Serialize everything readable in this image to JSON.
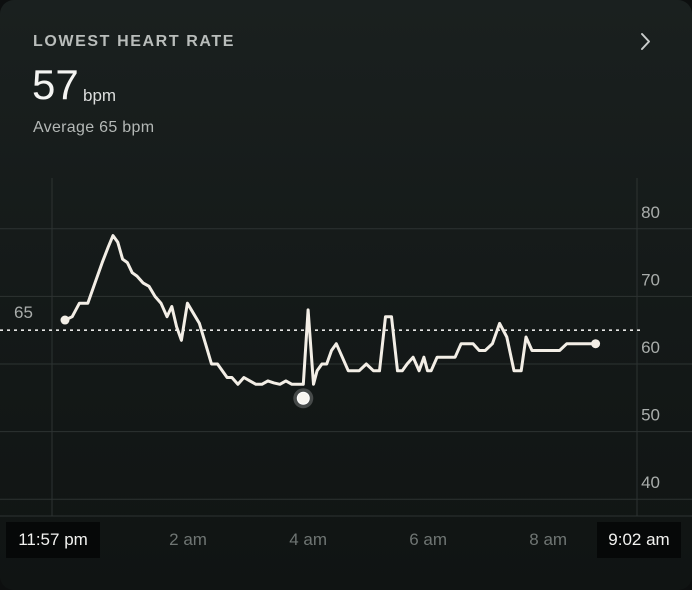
{
  "card": {
    "title": "LOWEST HEART RATE",
    "value": "57",
    "unit": "bpm",
    "average_text": "Average 65 bpm",
    "chevron_icon": "chevron-right-icon"
  },
  "chart_data": {
    "type": "line",
    "title": "",
    "xlabel": "",
    "ylabel": "",
    "y_ticks": [
      "80",
      "70",
      "60",
      "50",
      "40"
    ],
    "ylim": [
      35,
      85
    ],
    "x_start_label": "11:57 pm",
    "x_end_label": "9:02 am",
    "x_tick_labels": [
      "2 am",
      "4 am",
      "6 am",
      "8 am"
    ],
    "x_ticks_hours": [
      2.05,
      4.05,
      6.05,
      8.05
    ],
    "x_range_hours": [
      0,
      9.08
    ],
    "average": {
      "value": 65,
      "label": "65"
    },
    "lowest_point": {
      "x_hours": 3.97,
      "y": 57
    },
    "grid": true,
    "line_color": "#f3eee6",
    "series": [
      {
        "x": [
          0,
          0.12,
          0.24,
          0.38,
          0.5,
          0.62,
          0.72,
          0.8,
          0.88,
          0.96,
          1.04,
          1.12,
          1.2,
          1.3,
          1.4,
          1.5,
          1.6,
          1.7,
          1.78,
          1.86,
          1.94,
          2.04,
          2.14,
          2.24,
          2.34,
          2.44,
          2.54,
          2.62,
          2.7,
          2.78,
          2.88,
          2.98,
          3.08,
          3.18,
          3.28,
          3.38,
          3.48,
          3.58,
          3.68,
          3.78,
          3.88,
          3.97,
          4.05,
          4.14,
          4.2,
          4.28,
          4.36,
          4.44,
          4.52,
          4.62,
          4.72,
          4.82,
          4.9,
          5.02,
          5.14,
          5.24,
          5.34,
          5.44,
          5.54,
          5.62,
          5.7,
          5.8,
          5.9,
          5.98,
          6.04,
          6.1,
          6.2,
          6.3,
          6.4,
          6.5,
          6.6,
          6.7,
          6.8,
          6.9,
          7.0,
          7.12,
          7.24,
          7.36,
          7.48,
          7.6,
          7.68,
          7.78,
          7.88,
          7.96,
          8.04,
          8.14,
          8.24,
          8.36,
          8.48,
          8.56,
          8.64,
          8.74,
          8.84
        ],
        "values": [
          66.5,
          67,
          69,
          69,
          72,
          75,
          77.3,
          79,
          78,
          75.5,
          75,
          73.5,
          73,
          72,
          71.5,
          70,
          69,
          67,
          68.5,
          65.5,
          63.5,
          69,
          67.5,
          66,
          63,
          60,
          60,
          59,
          58,
          58,
          57,
          58,
          57.5,
          57,
          57,
          57.5,
          57.2,
          57,
          57.5,
          57,
          57,
          57,
          68,
          57,
          59,
          60,
          60,
          62,
          63,
          61,
          59,
          59,
          59,
          60,
          59,
          59,
          67,
          67,
          59,
          59,
          60,
          61,
          59,
          61,
          59,
          59,
          61,
          61,
          61,
          61,
          63,
          63,
          63,
          62,
          62,
          63,
          66,
          64,
          59,
          59,
          64,
          62,
          62,
          62,
          62,
          62,
          62,
          63,
          63,
          63,
          63,
          63,
          63
        ]
      }
    ]
  }
}
